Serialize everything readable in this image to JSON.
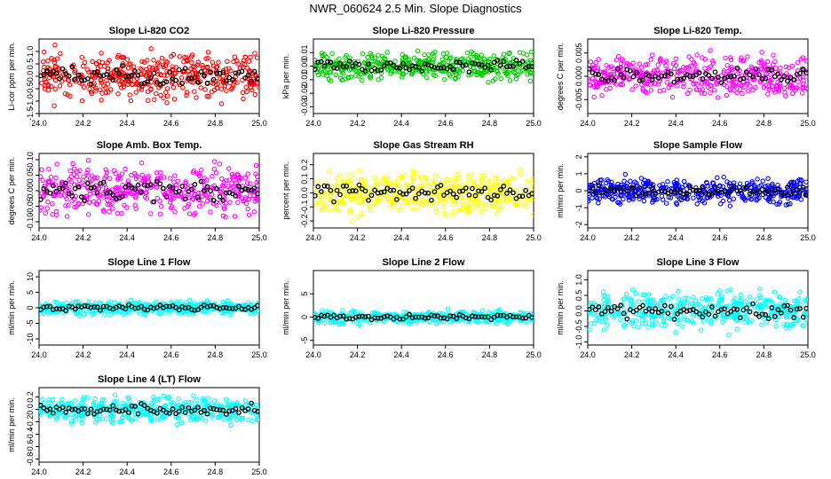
{
  "figure": {
    "title": "NWR_060624  2.5 Min. Slope Diagnostics",
    "colors": {
      "axis": "#000000",
      "interval_points": "#000000",
      "background": "#ffffff"
    }
  },
  "chart_data": [
    {
      "type": "scatter",
      "title": "Slope Li-820 CO2",
      "ylabel": "Li-cor ppm per min.",
      "color": "#ff0000",
      "xlim": [
        24.0,
        25.0
      ],
      "ylim": [
        -1.5,
        1.5
      ],
      "spread": 0.55,
      "seed": 11,
      "xticks": [
        "24.0",
        "24.2",
        "24.4",
        "24.6",
        "24.8",
        "25.0"
      ],
      "yticks": [
        -1.5,
        -1.0,
        -0.5,
        0.0,
        0.5,
        1.0
      ],
      "ytick_labels": [
        "-1.5",
        "-1.0",
        "-0.5",
        "0.0",
        "0.5",
        "1.0"
      ]
    },
    {
      "type": "scatter",
      "title": "Slope Li-820 Pressure",
      "ylabel": "kPa per min.",
      "color": "#00cc00",
      "xlim": [
        24.0,
        25.0
      ],
      "ylim": [
        -0.035,
        0.02
      ],
      "spread": 0.006,
      "seed": 23,
      "xticks": [
        "24.0",
        "24.2",
        "24.4",
        "24.6",
        "24.8",
        "25.0"
      ],
      "yticks": [
        -0.03,
        -0.02,
        -0.01,
        0.0,
        0.01
      ],
      "ytick_labels": [
        "-0.03",
        "-0.02",
        "-0.01",
        "0.00",
        "0.01"
      ]
    },
    {
      "type": "scatter",
      "title": "Slope Li-820 Temp.",
      "ylabel": "degrees C per min.",
      "color": "#ff00ff",
      "xlim": [
        24.0,
        25.0
      ],
      "ylim": [
        -0.008,
        0.008
      ],
      "spread": 0.0025,
      "seed": 37,
      "xticks": [
        "24.0",
        "24.2",
        "24.4",
        "24.6",
        "24.8",
        "25.0"
      ],
      "yticks": [
        -0.005,
        0.0,
        0.005
      ],
      "ytick_labels": [
        "-0.005",
        "0.000",
        "0.005"
      ]
    },
    {
      "type": "scatter",
      "title": "Slope Amb. Box Temp.",
      "ylabel": "degrees C per min.",
      "color": "#ff00ff",
      "xlim": [
        24.0,
        25.0
      ],
      "ylim": [
        -0.12,
        0.12
      ],
      "spread": 0.045,
      "seed": 41,
      "xticks": [
        "24.0",
        "24.2",
        "24.4",
        "24.6",
        "24.8",
        "25.0"
      ],
      "yticks": [
        -0.1,
        -0.05,
        0.0,
        0.05,
        0.1
      ],
      "ytick_labels": [
        "-0.10",
        "-0.05",
        "0.00",
        "0.05",
        "0.10"
      ]
    },
    {
      "type": "scatter",
      "title": "Slope Gas Stream RH",
      "ylabel": "percent per min.",
      "color": "#ffff00",
      "xlim": [
        24.0,
        25.0
      ],
      "ylim": [
        -0.25,
        0.28
      ],
      "spread": 0.09,
      "seed": 53,
      "xticks": [
        "24.0",
        "24.2",
        "24.4",
        "24.6",
        "24.8",
        "25.0"
      ],
      "yticks": [
        -0.2,
        -0.1,
        0.0,
        0.1,
        0.2
      ],
      "ytick_labels": [
        "-0.2",
        "-0.1",
        "0.0",
        "0.1",
        "0.2"
      ]
    },
    {
      "type": "scatter",
      "title": "Slope Sample Flow",
      "ylabel": "ml/min per min.",
      "color": "#0000ff",
      "xlim": [
        24.0,
        25.0
      ],
      "ylim": [
        -2.2,
        2.2
      ],
      "spread": 0.45,
      "seed": 67,
      "xticks": [
        "24.0",
        "24.2",
        "24.4",
        "24.6",
        "24.8",
        "25.0"
      ],
      "yticks": [
        -2,
        -1,
        0,
        1,
        2
      ],
      "ytick_labels": [
        "-2",
        "-1",
        "0",
        "1",
        "2"
      ]
    },
    {
      "type": "scatter",
      "title": "Slope Line 1 Flow",
      "ylabel": "ml/min per min.",
      "color": "#00ffff",
      "xlim": [
        24.0,
        25.0
      ],
      "ylim": [
        -12,
        12
      ],
      "spread": 1.2,
      "seed": 71,
      "xticks": [
        "24.0",
        "24.2",
        "24.4",
        "24.6",
        "24.8",
        "25.0"
      ],
      "yticks": [
        -10,
        -5,
        0,
        5,
        10
      ],
      "ytick_labels": [
        "-10",
        "-5",
        "0",
        "5",
        "10"
      ]
    },
    {
      "type": "scatter",
      "title": "Slope Line 2 Flow",
      "ylabel": "ml/min per min.",
      "color": "#00ffff",
      "xlim": [
        24.0,
        25.0
      ],
      "ylim": [
        -6,
        10
      ],
      "spread": 0.8,
      "seed": 83,
      "xticks": [
        "24.0",
        "24.2",
        "24.4",
        "24.6",
        "24.8",
        "25.0"
      ],
      "yticks": [
        -5,
        0,
        5
      ],
      "ytick_labels": [
        "-5",
        "0",
        "5"
      ]
    },
    {
      "type": "scatter",
      "title": "Slope Line 3 Flow",
      "ylabel": "ml/min per min.",
      "color": "#00ffff",
      "xlim": [
        24.0,
        25.0
      ],
      "ylim": [
        -1.1,
        1.3
      ],
      "spread": 0.35,
      "seed": 97,
      "xticks": [
        "24.0",
        "24.2",
        "24.4",
        "24.6",
        "24.8",
        "25.0"
      ],
      "yticks": [
        -1.0,
        -0.5,
        0.0,
        0.5,
        1.0
      ],
      "ytick_labels": [
        "-1.0",
        "-0.5",
        "0.0",
        "0.5",
        "1.0"
      ]
    },
    {
      "type": "scatter",
      "title": "Slope Line 4 (LT) Flow",
      "ylabel": "ml/min per min.",
      "color": "#00ffff",
      "xlim": [
        24.0,
        25.0
      ],
      "ylim": [
        -0.85,
        0.35
      ],
      "spread": 0.12,
      "seed": 101,
      "xticks": [
        "24.0",
        "24.2",
        "24.4",
        "24.6",
        "24.8",
        "25.0"
      ],
      "yticks": [
        -0.8,
        -0.6,
        -0.4,
        -0.2,
        0.0,
        0.2
      ],
      "ytick_labels": [
        "-0.8",
        "-0.6",
        "-0.4",
        "-0.2",
        "0.0",
        "0.2"
      ]
    }
  ]
}
